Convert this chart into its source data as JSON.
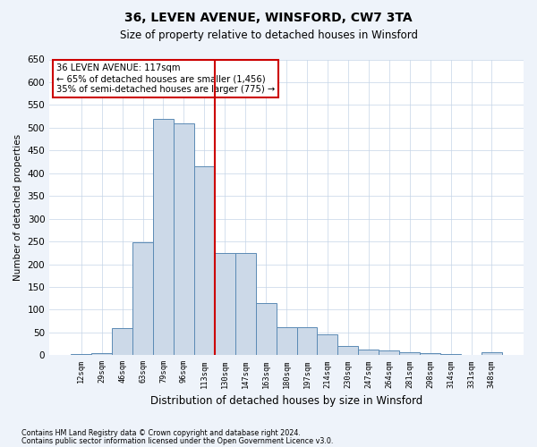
{
  "title1": "36, LEVEN AVENUE, WINSFORD, CW7 3TA",
  "title2": "Size of property relative to detached houses in Winsford",
  "xlabel": "Distribution of detached houses by size in Winsford",
  "ylabel": "Number of detached properties",
  "footnote1": "Contains HM Land Registry data © Crown copyright and database right 2024.",
  "footnote2": "Contains public sector information licensed under the Open Government Licence v3.0.",
  "annotation_title": "36 LEVEN AVENUE: 117sqm",
  "annotation_line1": "← 65% of detached houses are smaller (1,456)",
  "annotation_line2": "35% of semi-detached houses are larger (775) →",
  "bar_labels": [
    "12sqm",
    "29sqm",
    "46sqm",
    "63sqm",
    "79sqm",
    "96sqm",
    "113sqm",
    "130sqm",
    "147sqm",
    "163sqm",
    "180sqm",
    "197sqm",
    "214sqm",
    "230sqm",
    "247sqm",
    "264sqm",
    "281sqm",
    "298sqm",
    "314sqm",
    "331sqm",
    "348sqm"
  ],
  "bar_values": [
    2,
    5,
    60,
    248,
    520,
    510,
    415,
    225,
    225,
    115,
    62,
    62,
    45,
    20,
    12,
    10,
    7,
    5,
    2,
    0,
    6
  ],
  "bar_color": "#ccd9e8",
  "bar_edge_color": "#5b8ab5",
  "vline_position": 6.5,
  "vline_color": "#cc0000",
  "ylim_max": 650,
  "yticks": [
    0,
    50,
    100,
    150,
    200,
    250,
    300,
    350,
    400,
    450,
    500,
    550,
    600,
    650
  ],
  "bg_color": "#eef3fa",
  "plot_bg_color": "#ffffff",
  "grid_color": "#c5d5e8"
}
